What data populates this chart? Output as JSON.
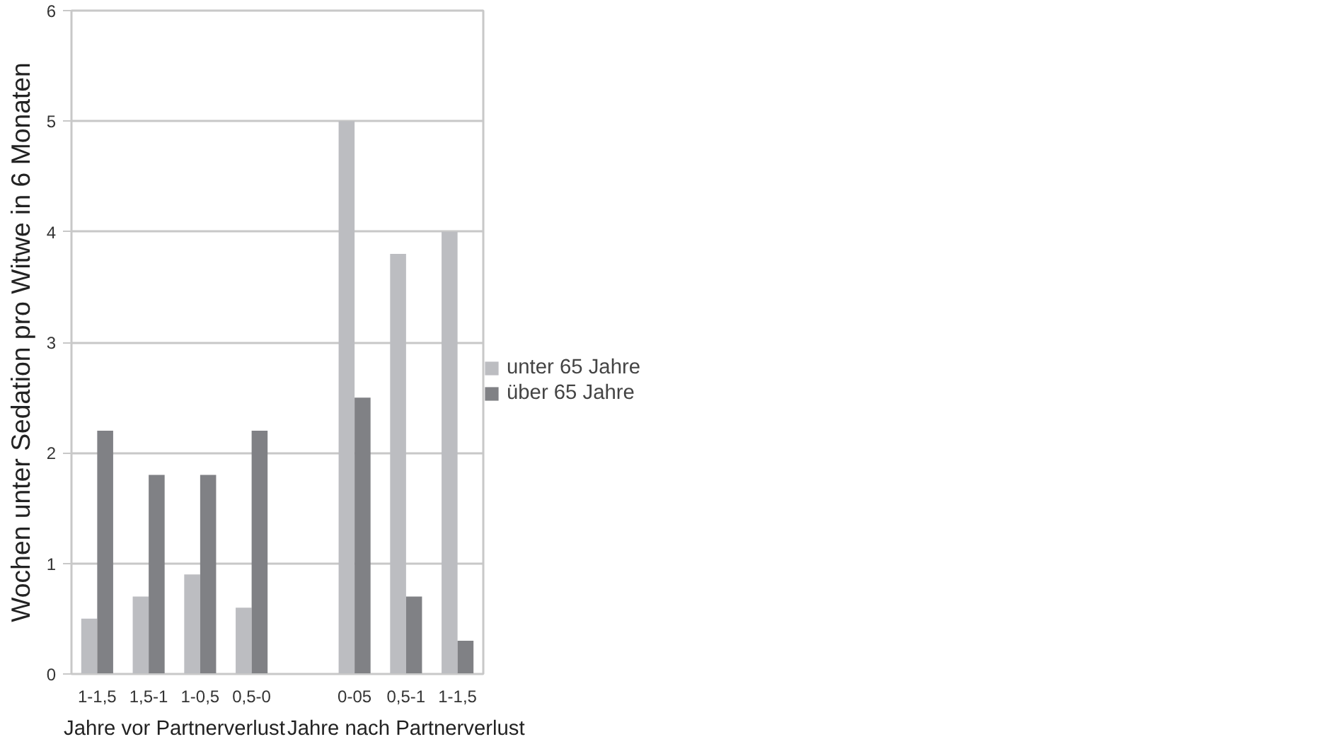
{
  "chart_data": {
    "type": "bar",
    "ylabel": "Wochen unter Sedation pro Witwe in 6 Monaten",
    "categories": [
      "1-1,5",
      "1,5-1",
      "1-0,5",
      "0,5-0",
      null,
      "0-05",
      "0,5-1",
      "1-1,5"
    ],
    "series": [
      {
        "name": "unter 65 Jahre",
        "color": "#bcbdc1",
        "values": [
          0.5,
          0.7,
          0.9,
          0.6,
          null,
          5.0,
          3.8,
          4.0
        ]
      },
      {
        "name": "über 65 Jahre",
        "color": "#808185",
        "values": [
          2.2,
          1.8,
          1.8,
          2.2,
          null,
          2.5,
          0.7,
          0.3
        ]
      }
    ],
    "annotations": [
      "Jahre vor Partnerverlust",
      "Jahre nach Partnerverlust"
    ],
    "ylim": [
      0,
      6
    ],
    "yticks": [
      0,
      1,
      2,
      3,
      4,
      5,
      6
    ],
    "grid": "y",
    "legend": "right"
  }
}
